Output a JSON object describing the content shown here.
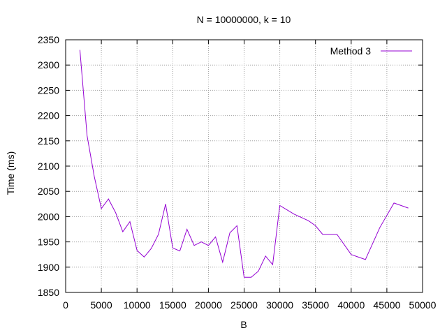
{
  "chart_data": {
    "type": "line",
    "title": "N = 10000000, k = 10",
    "xlabel": "B",
    "ylabel": "Time (ms)",
    "xlim": [
      0,
      50000
    ],
    "ylim": [
      1850,
      2350
    ],
    "xticks": [
      0,
      5000,
      10000,
      15000,
      20000,
      25000,
      30000,
      35000,
      40000,
      45000,
      50000
    ],
    "yticks": [
      1850,
      1900,
      1950,
      2000,
      2050,
      2100,
      2150,
      2200,
      2250,
      2300,
      2350
    ],
    "grid": true,
    "legend_position": "top-right",
    "series": [
      {
        "name": "Method 3",
        "color": "#9400d3",
        "x": [
          2000,
          3000,
          4000,
          5000,
          6000,
          7000,
          8000,
          9000,
          10000,
          11000,
          12000,
          13000,
          14000,
          15000,
          16000,
          17000,
          18000,
          19000,
          20000,
          21000,
          22000,
          23000,
          24000,
          25000,
          26000,
          27000,
          28000,
          29000,
          30000,
          32000,
          34000,
          35000,
          36000,
          38000,
          40000,
          42000,
          44000,
          46000,
          48000
        ],
        "y": [
          2330,
          2160,
          2080,
          2016,
          2035,
          2008,
          1970,
          1990,
          1933,
          1920,
          1937,
          1965,
          2025,
          1938,
          1932,
          1975,
          1943,
          1950,
          1943,
          1960,
          1910,
          1968,
          1982,
          1880,
          1880,
          1892,
          1922,
          1905,
          2022,
          2005,
          1992,
          1982,
          1965,
          1965,
          1925,
          1915,
          1978,
          2027,
          2017
        ]
      }
    ]
  }
}
